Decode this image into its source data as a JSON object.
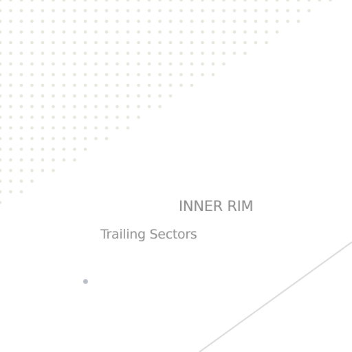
{
  "title": "INNER RIM",
  "subtitle": "Trailing Sectors",
  "colors": {
    "dot_pattern": "#e6e6dc",
    "divider": "#d9d9d9",
    "marker": "#b9bec8",
    "text": "#8a8a8a"
  }
}
